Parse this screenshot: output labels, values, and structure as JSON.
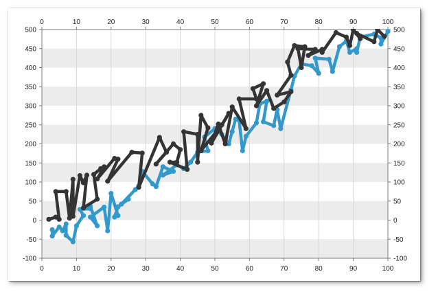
{
  "chart_data": {
    "type": "line",
    "title": "",
    "xlabel": "",
    "ylabel": "",
    "xlim": [
      0,
      100
    ],
    "ylim": [
      -100,
      500
    ],
    "x_ticks": [
      "0",
      "10",
      "20",
      "30",
      "40",
      "50",
      "60",
      "70",
      "80",
      "90",
      "100"
    ],
    "y_ticks": [
      "500",
      "450",
      "400",
      "350",
      "300",
      "250",
      "200",
      "150",
      "100",
      "50",
      "0",
      "-50",
      "-100"
    ],
    "x_axis_positions": [
      "top",
      "bottom"
    ],
    "y_axis_positions": [
      "left",
      "right"
    ],
    "grid": true,
    "banded_rows": true,
    "legend": "none",
    "series": [
      {
        "color": "#343434",
        "points": [
          [
            2,
            2
          ],
          [
            4,
            8
          ],
          [
            5,
            2
          ],
          [
            4,
            75
          ],
          [
            7,
            75
          ],
          [
            8,
            5
          ],
          [
            9,
            107
          ],
          [
            9,
            10
          ],
          [
            11,
            117
          ],
          [
            12,
            98
          ],
          [
            13,
            118
          ],
          [
            12,
            32
          ],
          [
            16,
            55
          ],
          [
            15,
            120
          ],
          [
            17,
            135
          ],
          [
            18,
            140
          ],
          [
            16,
            108
          ],
          [
            21,
            162
          ],
          [
            22,
            160
          ],
          [
            19,
            102
          ],
          [
            26,
            178
          ],
          [
            29,
            176
          ],
          [
            28,
            86
          ],
          [
            34,
            217
          ],
          [
            36,
            178
          ],
          [
            33,
            147
          ],
          [
            38,
            200
          ],
          [
            40,
            185
          ],
          [
            39,
            152
          ],
          [
            37,
            152
          ],
          [
            42,
            133
          ],
          [
            41,
            232
          ],
          [
            45,
            225
          ],
          [
            45,
            152
          ],
          [
            46,
            275
          ],
          [
            48,
            242
          ],
          [
            46,
            182
          ],
          [
            52,
            250
          ],
          [
            54,
            280
          ],
          [
            49,
            202
          ],
          [
            51,
            252
          ],
          [
            53,
            200
          ],
          [
            55,
            297
          ],
          [
            59,
            240
          ],
          [
            57,
            318
          ],
          [
            62,
            318
          ],
          [
            61,
            345
          ],
          [
            64,
            358
          ],
          [
            62,
            300
          ],
          [
            65,
            340
          ],
          [
            67,
            293
          ],
          [
            70,
            310
          ],
          [
            72,
            337
          ],
          [
            68,
            328
          ],
          [
            72,
            380
          ],
          [
            71,
            415
          ],
          [
            73,
            458
          ],
          [
            76,
            455
          ],
          [
            75,
            400
          ],
          [
            74,
            450
          ],
          [
            79,
            448
          ],
          [
            77,
            432
          ],
          [
            81,
            448
          ],
          [
            81,
            440
          ],
          [
            85,
            492
          ],
          [
            88,
            480
          ],
          [
            89,
            458
          ],
          [
            90,
            500
          ],
          [
            92,
            476
          ],
          [
            91,
            490
          ],
          [
            96,
            468
          ],
          [
            97,
            500
          ],
          [
            99,
            482
          ]
        ]
      },
      {
        "color": "#3399cc",
        "points": [
          [
            3,
            -25
          ],
          [
            3,
            -42
          ],
          [
            5,
            -18
          ],
          [
            6,
            -28
          ],
          [
            7,
            -10
          ],
          [
            7,
            -40
          ],
          [
            9,
            -57
          ],
          [
            10,
            -15
          ],
          [
            12,
            12
          ],
          [
            11,
            28
          ],
          [
            14,
            30
          ],
          [
            14,
            36
          ],
          [
            16,
            -15
          ],
          [
            14,
            8
          ],
          [
            18,
            34
          ],
          [
            19,
            -28
          ],
          [
            20,
            70
          ],
          [
            22,
            12
          ],
          [
            21,
            8
          ],
          [
            22,
            35
          ],
          [
            25,
            55
          ],
          [
            23,
            42
          ],
          [
            27,
            80
          ],
          [
            28,
            90
          ],
          [
            29,
            128
          ],
          [
            32,
            95
          ],
          [
            33,
            88
          ],
          [
            35,
            140
          ],
          [
            38,
            128
          ],
          [
            35,
            118
          ],
          [
            39,
            145
          ],
          [
            41,
            135
          ],
          [
            43,
            152
          ],
          [
            45,
            178
          ],
          [
            48,
            182
          ],
          [
            47,
            218
          ],
          [
            50,
            240
          ],
          [
            52,
            225
          ],
          [
            54,
            200
          ],
          [
            55,
            232
          ],
          [
            56,
            265
          ],
          [
            57,
            262
          ],
          [
            58,
            182
          ],
          [
            59,
            220
          ],
          [
            62,
            255
          ],
          [
            63,
            305
          ],
          [
            65,
            312
          ],
          [
            64,
            258
          ],
          [
            67,
            248
          ],
          [
            68,
            290
          ],
          [
            69,
            240
          ],
          [
            72,
            342
          ],
          [
            73,
            378
          ],
          [
            75,
            410
          ],
          [
            78,
            405
          ],
          [
            80,
            385
          ],
          [
            79,
            425
          ],
          [
            83,
            422
          ],
          [
            84,
            390
          ],
          [
            86,
            455
          ],
          [
            88,
            470
          ],
          [
            89,
            440
          ],
          [
            91,
            450
          ],
          [
            91,
            440
          ],
          [
            92,
            480
          ],
          [
            96,
            488
          ],
          [
            98,
            478
          ],
          [
            98,
            462
          ],
          [
            100,
            495
          ]
        ]
      }
    ]
  }
}
